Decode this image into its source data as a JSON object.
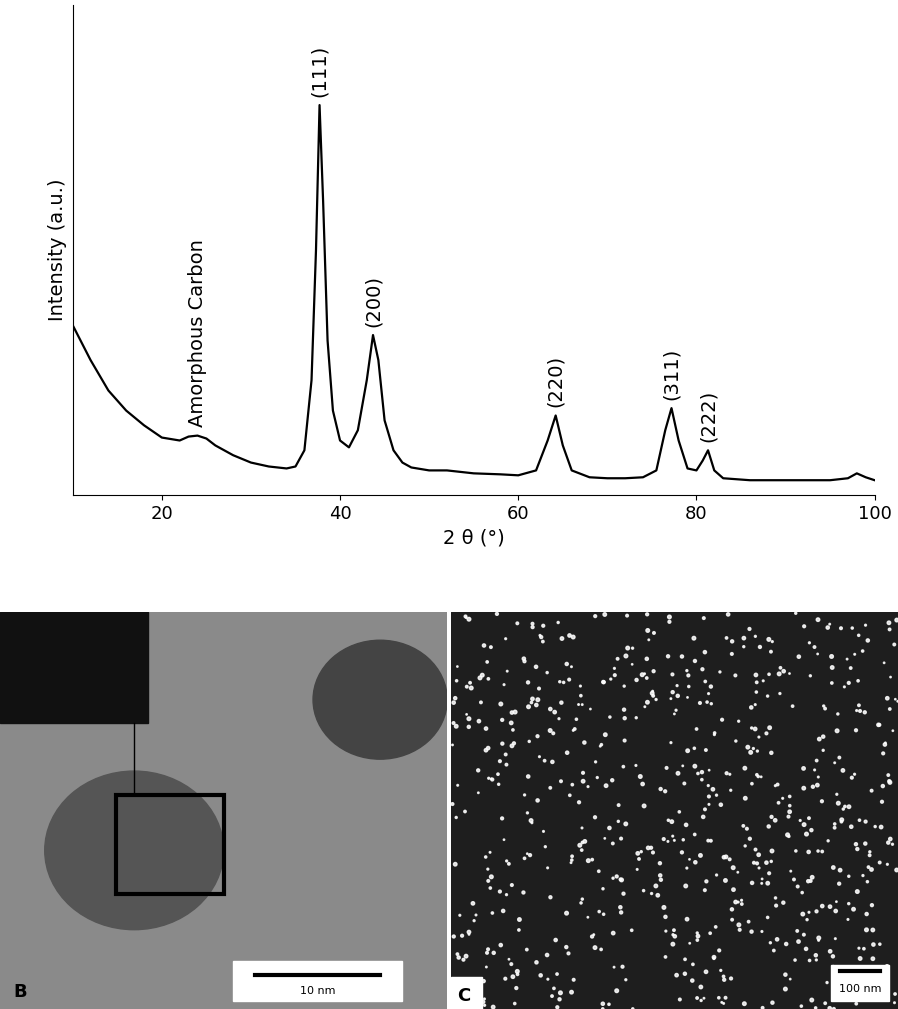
{
  "chart_data": {
    "type": "line",
    "xlabel": "2 θ (°)",
    "ylabel": "Intensity (a.u.)",
    "x": [
      10,
      12,
      14,
      16,
      18,
      20,
      22,
      23,
      24,
      25,
      26,
      28,
      30,
      32,
      34,
      35,
      36,
      36.8,
      37.3,
      37.7,
      38.1,
      38.6,
      39.2,
      40,
      41,
      42,
      43,
      43.7,
      44.3,
      45,
      46,
      47,
      48,
      50,
      52,
      55,
      58,
      60,
      62,
      63.3,
      64.2,
      65,
      66,
      68,
      70,
      72,
      74,
      75.5,
      76.5,
      77.2,
      78,
      79,
      80,
      80.7,
      81.3,
      82,
      83,
      86,
      90,
      95,
      97,
      98,
      99,
      100
    ],
    "values": [
      34.7,
      27.6,
      21.4,
      17.3,
      14.3,
      11.8,
      11.2,
      12.0,
      12.2,
      11.6,
      10.2,
      8.2,
      6.7,
      5.9,
      5.5,
      5.9,
      9.2,
      23.5,
      50.0,
      79.6,
      60.0,
      31.6,
      17.3,
      11.2,
      9.8,
      13.3,
      23.5,
      32.7,
      27.6,
      15.3,
      9.2,
      6.7,
      5.7,
      5.1,
      5.1,
      4.5,
      4.3,
      4.1,
      5.1,
      11.2,
      16.3,
      10.2,
      5.1,
      3.7,
      3.5,
      3.5,
      3.7,
      5.1,
      13.3,
      17.8,
      11.2,
      5.5,
      5.1,
      7.1,
      9.2,
      5.1,
      3.5,
      3.1,
      3.1,
      3.1,
      3.5,
      4.5,
      3.7,
      3.1
    ],
    "color": "#000000",
    "xlim": [
      10,
      100
    ],
    "xticks": [
      20,
      40,
      60,
      80,
      100
    ],
    "ylim": [
      0,
      100
    ],
    "tick_labels": "x",
    "annotations": [
      {
        "text": "Amorphous Carbon",
        "x": 24
      },
      {
        "text": "(111)",
        "x": 37.7
      },
      {
        "text": "(200)",
        "x": 43.7
      },
      {
        "text": "(220)",
        "x": 64.2
      },
      {
        "text": "(311)",
        "x": 77.2
      },
      {
        "text": "(222)",
        "x": 81.3
      }
    ]
  },
  "panels": [
    {
      "label": "B",
      "scale_bar": "10 nm"
    },
    {
      "label": "C",
      "scale_bar": "100 nm"
    }
  ]
}
